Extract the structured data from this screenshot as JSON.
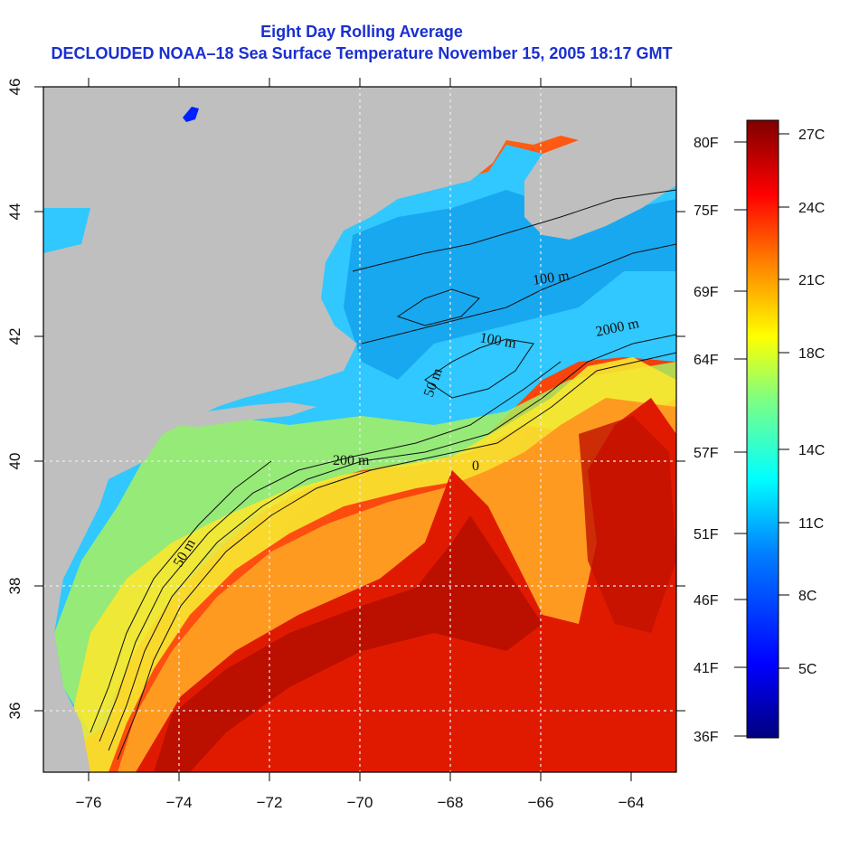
{
  "title": {
    "line1": "Eight Day Rolling Average",
    "line2": "DECLOUDED NOAA–18 Sea Surface Temperature November 15, 2005 18:17 GMT"
  },
  "map": {
    "x_ticks": [
      "−76",
      "−74",
      "−72",
      "−70",
      "−68",
      "−66",
      "−64"
    ],
    "y_ticks": [
      "36",
      "38",
      "40",
      "42",
      "44",
      "46"
    ],
    "contour_labels": [
      "100 m",
      "2000 m",
      "100 m",
      "50 m",
      "200 m",
      "0",
      "50 m"
    ],
    "colors": {
      "land": "#bfbfbf",
      "grid": "#e8e8e8",
      "frame": "#000000"
    }
  },
  "scale": {
    "fahrenheit": [
      "80F",
      "75F",
      "69F",
      "64F",
      "57F",
      "51F",
      "46F",
      "41F",
      "36F"
    ],
    "celsius": [
      "27C",
      "24C",
      "21C",
      "18C",
      "14C",
      "11C",
      "8C",
      "5C"
    ],
    "gradient": [
      "#00007f",
      "#0000ff",
      "#0080ff",
      "#00ffff",
      "#80ff80",
      "#ffff00",
      "#ff8000",
      "#ff0000",
      "#7f0000"
    ]
  }
}
